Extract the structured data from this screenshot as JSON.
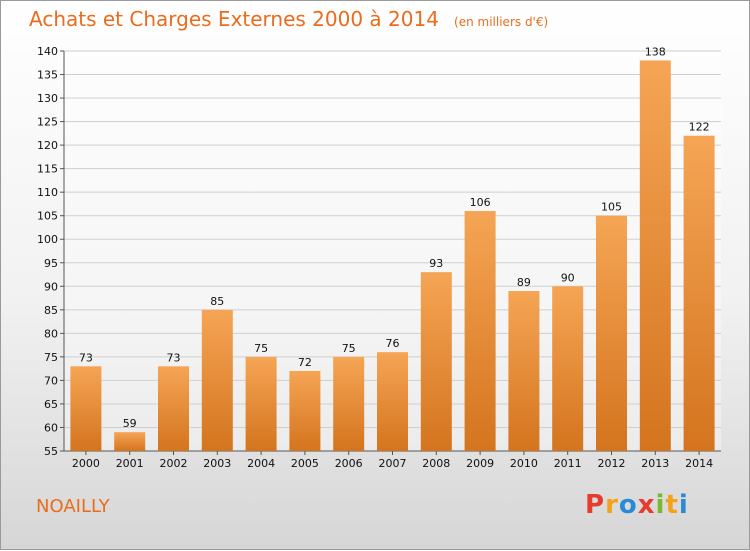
{
  "chart_data": {
    "type": "bar",
    "title": "Achats et Charges Externes 2000 à 2014",
    "subtitle": "(en milliers d'€)",
    "xlabel": "",
    "ylabel": "",
    "categories": [
      "2000",
      "2001",
      "2002",
      "2003",
      "2004",
      "2005",
      "2006",
      "2007",
      "2008",
      "2009",
      "2010",
      "2011",
      "2012",
      "2013",
      "2014"
    ],
    "values": [
      73,
      59,
      73,
      85,
      75,
      72,
      75,
      76,
      93,
      106,
      89,
      90,
      105,
      138,
      122
    ],
    "ylim": [
      55,
      140
    ],
    "yticks": [
      55,
      60,
      65,
      70,
      75,
      80,
      85,
      90,
      95,
      100,
      105,
      110,
      115,
      120,
      125,
      130,
      135,
      140
    ],
    "grid": true,
    "legend": "none",
    "colors": {
      "bar_top": "#f5a555",
      "bar_bottom": "#d4741e",
      "text": "#ea6c1c",
      "grid": "#cfcfcf"
    }
  },
  "footer": {
    "commune": "NOAILLY",
    "logo_letters": [
      "P",
      "r",
      "o",
      "x",
      "i",
      "t",
      "i"
    ],
    "logo_colors": [
      "#e63c2e",
      "#f4a21b",
      "#2a8bd3",
      "#e63c2e",
      "#7cb82f",
      "#f4a21b",
      "#2a8bd3"
    ]
  }
}
